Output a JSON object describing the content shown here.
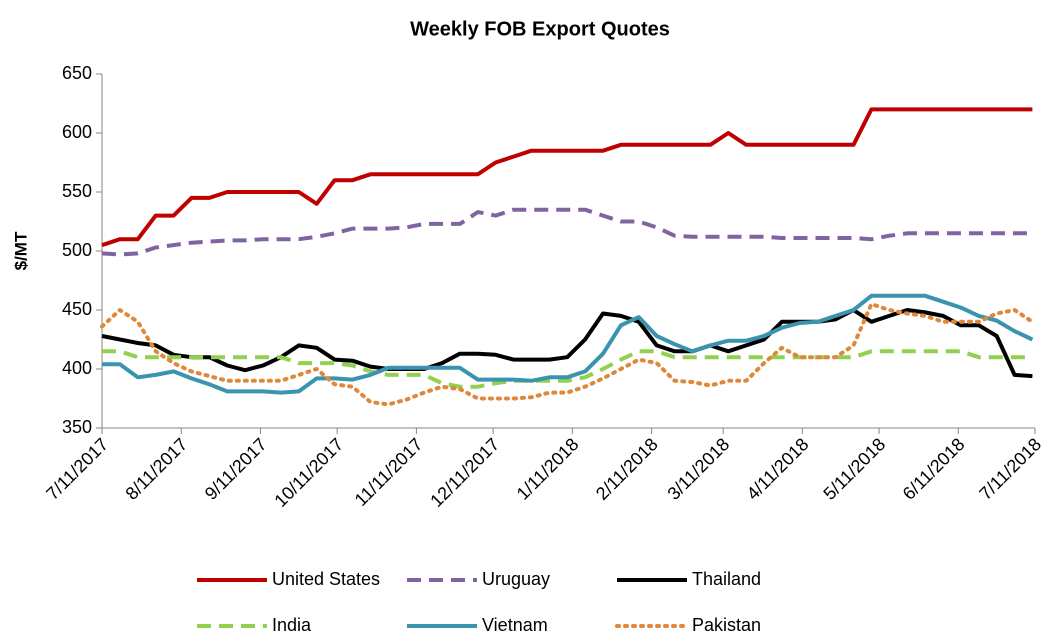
{
  "chart_data": {
    "type": "line",
    "title": "Weekly FOB Export Quotes",
    "y_label": "$/MT",
    "x": [
      "7/11/2017",
      "7/18/2017",
      "7/25/2017",
      "8/1/2017",
      "8/8/2017",
      "8/15/2017",
      "8/22/2017",
      "8/29/2017",
      "9/5/2017",
      "9/12/2017",
      "9/19/2017",
      "9/26/2017",
      "10/3/2017",
      "10/10/2017",
      "10/17/2017",
      "10/24/2017",
      "10/31/2017",
      "11/7/2017",
      "11/14/2017",
      "11/21/2017",
      "11/28/2017",
      "12/5/2017",
      "12/12/2017",
      "12/19/2017",
      "12/26/2017",
      "1/2/2018",
      "1/9/2018",
      "1/16/2018",
      "1/23/2018",
      "1/30/2018",
      "2/6/2018",
      "2/13/2018",
      "2/20/2018",
      "2/27/2018",
      "3/6/2018",
      "3/13/2018",
      "3/20/2018",
      "3/27/2018",
      "4/3/2018",
      "4/10/2018",
      "4/17/2018",
      "4/24/2018",
      "5/1/2018",
      "5/8/2018",
      "5/15/2018",
      "5/22/2018",
      "5/29/2018",
      "6/5/2018",
      "6/12/2018",
      "6/19/2018",
      "6/26/2018",
      "7/3/2018",
      "7/10/2018"
    ],
    "xlim": [
      "7/11/2017",
      "7/11/2018"
    ],
    "xticks": [
      "7/11/2017",
      "8/11/2017",
      "9/11/2017",
      "10/11/2017",
      "11/11/2017",
      "12/11/2017",
      "1/11/2018",
      "2/11/2018",
      "3/11/2018",
      "4/11/2018",
      "5/11/2018",
      "6/11/2018",
      "7/11/2018"
    ],
    "ylim": [
      350,
      650
    ],
    "yticks": [
      350,
      400,
      450,
      500,
      550,
      600,
      650
    ],
    "grid": false,
    "legend": "bottom",
    "series": [
      {
        "name": "United States",
        "color": "#c00000",
        "dash": "solid",
        "values": [
          505,
          510,
          510,
          530,
          530,
          545,
          545,
          550,
          550,
          550,
          550,
          550,
          540,
          560,
          560,
          565,
          565,
          565,
          565,
          565,
          565,
          565,
          575,
          580,
          585,
          585,
          585,
          585,
          585,
          590,
          590,
          590,
          590,
          590,
          590,
          600,
          590,
          590,
          590,
          590,
          590,
          590,
          590,
          620,
          620,
          620,
          620,
          620,
          620,
          620,
          620,
          620,
          620
        ]
      },
      {
        "name": "Uruguay",
        "color": "#8064a2",
        "dash": "dashed",
        "values": [
          498,
          497,
          498,
          503,
          505,
          507,
          508,
          509,
          509,
          510,
          510,
          510,
          512,
          515,
          519,
          519,
          519,
          520,
          523,
          523,
          523,
          533,
          530,
          535,
          535,
          535,
          535,
          535,
          530,
          525,
          525,
          520,
          513,
          512,
          512,
          512,
          512,
          512,
          511,
          511,
          511,
          511,
          511,
          510,
          513,
          515,
          515,
          515,
          515,
          515,
          515,
          515,
          515
        ]
      },
      {
        "name": "Thailand",
        "color": "#000000",
        "dash": "solid",
        "values": [
          428,
          425,
          422,
          420,
          412,
          410,
          410,
          403,
          399,
          403,
          410,
          420,
          418,
          408,
          407,
          402,
          400,
          400,
          400,
          405,
          413,
          413,
          412,
          408,
          408,
          408,
          410,
          425,
          447,
          445,
          440,
          420,
          415,
          415,
          420,
          415,
          420,
          425,
          440,
          440,
          440,
          442,
          450,
          440,
          445,
          450,
          448,
          445,
          437,
          437,
          428,
          395,
          394
        ]
      },
      {
        "name": "India",
        "color": "#92d050",
        "dash": "dashed",
        "values": [
          415,
          415,
          410,
          410,
          410,
          410,
          410,
          410,
          410,
          410,
          410,
          405,
          405,
          405,
          403,
          398,
          395,
          395,
          395,
          388,
          385,
          385,
          388,
          390,
          390,
          390,
          390,
          393,
          400,
          408,
          415,
          415,
          410,
          410,
          410,
          410,
          410,
          410,
          410,
          410,
          410,
          410,
          410,
          415,
          415,
          415,
          415,
          415,
          415,
          410,
          410,
          410,
          410
        ]
      },
      {
        "name": "Vietnam",
        "color": "#3a94ad",
        "dash": "solid",
        "values": [
          404,
          404,
          393,
          395,
          398,
          392,
          387,
          381,
          381,
          381,
          380,
          381,
          392,
          392,
          391,
          395,
          401,
          401,
          401,
          401,
          401,
          391,
          391,
          391,
          390,
          393,
          393,
          398,
          413,
          437,
          444,
          428,
          421,
          415,
          420,
          424,
          424,
          428,
          435,
          439,
          440,
          445,
          450,
          462,
          462,
          462,
          462,
          457,
          452,
          445,
          441,
          432,
          425
        ]
      },
      {
        "name": "Pakistan",
        "color": "#e0883a",
        "dash": "dotted",
        "values": [
          436,
          450,
          440,
          415,
          405,
          398,
          394,
          390,
          390,
          390,
          390,
          395,
          400,
          387,
          385,
          372,
          370,
          374,
          380,
          385,
          383,
          375,
          375,
          375,
          376,
          380,
          380,
          385,
          392,
          400,
          408,
          405,
          390,
          389,
          386,
          390,
          390,
          405,
          418,
          410,
          410,
          410,
          420,
          455,
          450,
          447,
          445,
          440,
          440,
          440,
          447,
          450,
          440
        ]
      }
    ]
  }
}
